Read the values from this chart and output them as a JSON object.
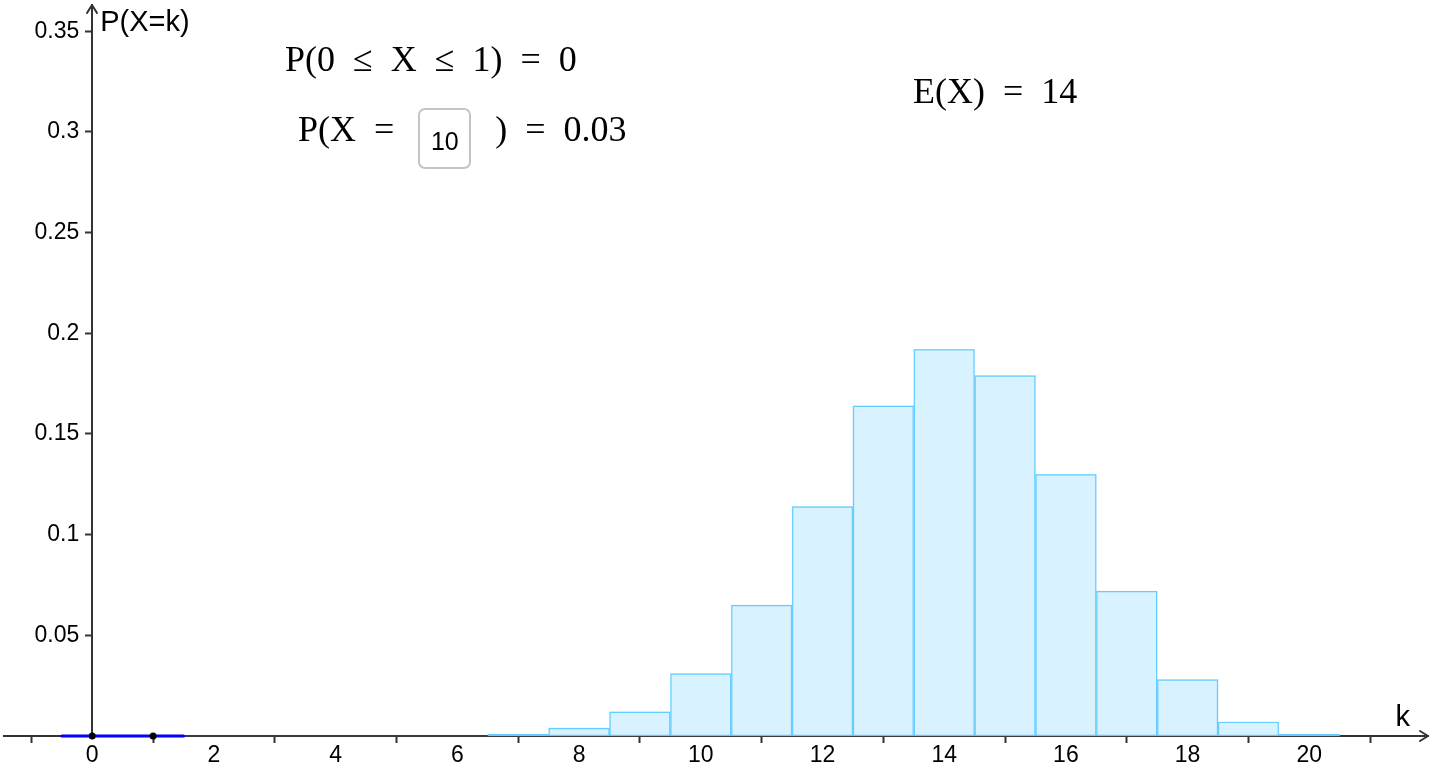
{
  "chart_data": {
    "type": "histogram",
    "xlabel": "k",
    "ylabel": "P(X=k)",
    "bins": [
      -0.5,
      0.5,
      1.5,
      2.5,
      3.5,
      4.5,
      5.5,
      6.5,
      7.5,
      8.5,
      9.5,
      10.5,
      11.5,
      12.5,
      13.5,
      14.5,
      15.5,
      16.5,
      17.5,
      18.5,
      19.5,
      20.5
    ],
    "series": [
      {
        "values": [
          0,
          0,
          0,
          0,
          0,
          0,
          0,
          0.001,
          0.004,
          0.012,
          0.031,
          0.065,
          0.114,
          0.164,
          0.192,
          0.179,
          0.13,
          0.072,
          0.028,
          0.007,
          0.001
        ],
        "color": "#66ccff"
      },
      {
        "type": "line",
        "x": [
          -0.5,
          1.5
        ],
        "values": [
          0,
          0
        ],
        "color": "#0000ff"
      },
      {
        "type": "scatter",
        "x": [
          0,
          1
        ],
        "values": [
          0,
          0
        ],
        "color": "#000000",
        "marker": "circle"
      }
    ],
    "xlim": [
      -1.45,
      21.95
    ],
    "ylim": [
      0,
      0.363
    ],
    "xticks": [
      0,
      2,
      4,
      6,
      8,
      10,
      12,
      14,
      16,
      18,
      20
    ],
    "yticks": [
      0.05,
      0.1,
      0.15,
      0.2,
      0.25,
      0.3,
      0.35
    ],
    "annotations": [
      "P(0 ≤ X ≤ 1) = 0",
      "P(X = 10 ) = 0.03",
      "E(X) = 14"
    ]
  }
}
